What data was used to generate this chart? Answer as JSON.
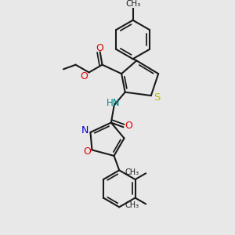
{
  "bg_color": "#e8e8e8",
  "bond_color": "#1a1a1a",
  "bond_width": 1.5,
  "S_color": "#b8b800",
  "O_color": "#dd0000",
  "N_color": "#0000cc",
  "H_color": "#008888",
  "figsize": [
    3.0,
    3.0
  ],
  "dpi": 100,
  "xlim": [
    0.05,
    0.95
  ],
  "ylim": [
    0.02,
    0.98
  ]
}
